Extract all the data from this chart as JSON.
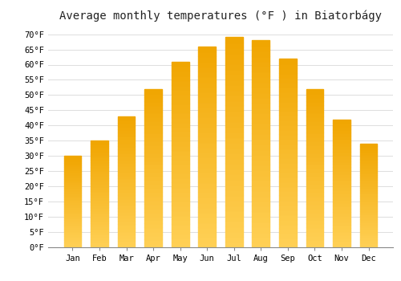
{
  "title": "Average monthly temperatures (°F ) in Biatorbágy",
  "months": [
    "Jan",
    "Feb",
    "Mar",
    "Apr",
    "May",
    "Jun",
    "Jul",
    "Aug",
    "Sep",
    "Oct",
    "Nov",
    "Dec"
  ],
  "values": [
    30,
    35,
    43,
    52,
    61,
    66,
    69,
    68,
    62,
    52,
    42,
    34
  ],
  "bar_color_dark": "#F0A500",
  "bar_color_light": "#FFD055",
  "background_color": "#FFFFFF",
  "grid_color": "#DDDDDD",
  "ylim": [
    0,
    72
  ],
  "yticks": [
    0,
    5,
    10,
    15,
    20,
    25,
    30,
    35,
    40,
    45,
    50,
    55,
    60,
    65,
    70
  ],
  "title_fontsize": 10,
  "tick_fontsize": 7.5,
  "font_family": "monospace"
}
